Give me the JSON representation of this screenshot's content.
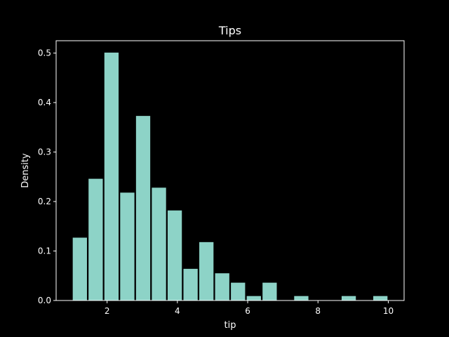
{
  "chart_data": {
    "type": "bar",
    "title": "Tips",
    "xlabel": "tip",
    "ylabel": "Density",
    "xlim": [
      0.55,
      10.45
    ],
    "ylim": [
      0,
      0.525
    ],
    "xticks": [
      2,
      4,
      6,
      8,
      10
    ],
    "yticks": [
      0.0,
      0.1,
      0.2,
      0.3,
      0.4,
      0.5
    ],
    "ytick_labels": [
      "0.0",
      "0.1",
      "0.2",
      "0.3",
      "0.4",
      "0.5"
    ],
    "xtick_labels": [
      "2",
      "4",
      "6",
      "8",
      "10"
    ],
    "grid": false,
    "bin_edges": [
      1.0,
      1.45,
      1.9,
      2.35,
      2.8,
      3.25,
      3.7,
      4.15,
      4.6,
      5.05,
      5.5,
      5.95,
      6.4,
      6.85,
      7.3,
      7.75,
      8.2,
      8.65,
      9.1,
      9.55,
      10.0
    ],
    "bar_width_fraction": 0.9,
    "values": [
      0.127,
      0.246,
      0.501,
      0.218,
      0.373,
      0.228,
      0.182,
      0.064,
      0.118,
      0.055,
      0.036,
      0.009,
      0.036,
      0.0,
      0.009,
      0.0,
      0.0,
      0.009,
      0.0,
      0.009
    ],
    "bar_color": "#8dd3c7"
  }
}
